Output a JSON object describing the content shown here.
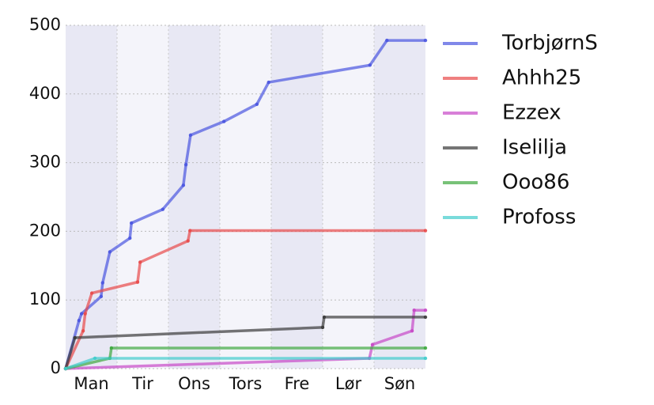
{
  "chart_data": {
    "type": "line",
    "xlim": [
      0,
      7
    ],
    "xticks": [
      {
        "value": 0.5,
        "label": "Man"
      },
      {
        "value": 1.5,
        "label": "Tir"
      },
      {
        "value": 2.5,
        "label": "Ons"
      },
      {
        "value": 3.5,
        "label": "Tors"
      },
      {
        "value": 4.5,
        "label": "Fre"
      },
      {
        "value": 5.5,
        "label": "Lør"
      },
      {
        "value": 6.5,
        "label": "Søn"
      }
    ],
    "ylim": [
      0,
      500
    ],
    "yticks": [
      0,
      100,
      200,
      300,
      400,
      500
    ],
    "grid": true,
    "legend": "right",
    "series": [
      {
        "name": "TorbjørnS",
        "color": "#4a55e0",
        "x": [
          0,
          0.26,
          0.31,
          0.69,
          0.72,
          0.86,
          1.25,
          1.28,
          1.89,
          2.29,
          2.34,
          2.43,
          3.08,
          3.72,
          3.95,
          5.92,
          6.25,
          7
        ],
        "values": [
          0,
          70,
          80,
          105,
          125,
          170,
          190,
          212,
          232,
          267,
          297,
          340,
          360,
          385,
          417,
          442,
          478,
          478
        ]
      },
      {
        "name": "Ahhh25",
        "color": "#e84a4a",
        "x": [
          0,
          0.34,
          0.38,
          0.51,
          1.4,
          1.45,
          2.38,
          2.42,
          7
        ],
        "values": [
          0,
          55,
          80,
          110,
          126,
          155,
          186,
          201,
          201
        ]
      },
      {
        "name": "Ezzex",
        "color": "#c748c7",
        "x": [
          0,
          5.91,
          5.97,
          6.74,
          6.78,
          7
        ],
        "values": [
          0,
          15,
          35,
          55,
          85,
          85
        ]
      },
      {
        "name": "Iselilja",
        "color": "#3a3a3a",
        "x": [
          0,
          0.18,
          5.0,
          5.03,
          7
        ],
        "values": [
          0,
          45,
          60,
          75,
          75
        ]
      },
      {
        "name": "Ooo86",
        "color": "#3fa83f",
        "x": [
          0,
          0.86,
          0.89,
          7
        ],
        "values": [
          0,
          15,
          30,
          30
        ]
      },
      {
        "name": "Profoss",
        "color": "#40cccc",
        "x": [
          0,
          0.57,
          7
        ],
        "values": [
          0,
          15,
          15
        ]
      }
    ]
  }
}
